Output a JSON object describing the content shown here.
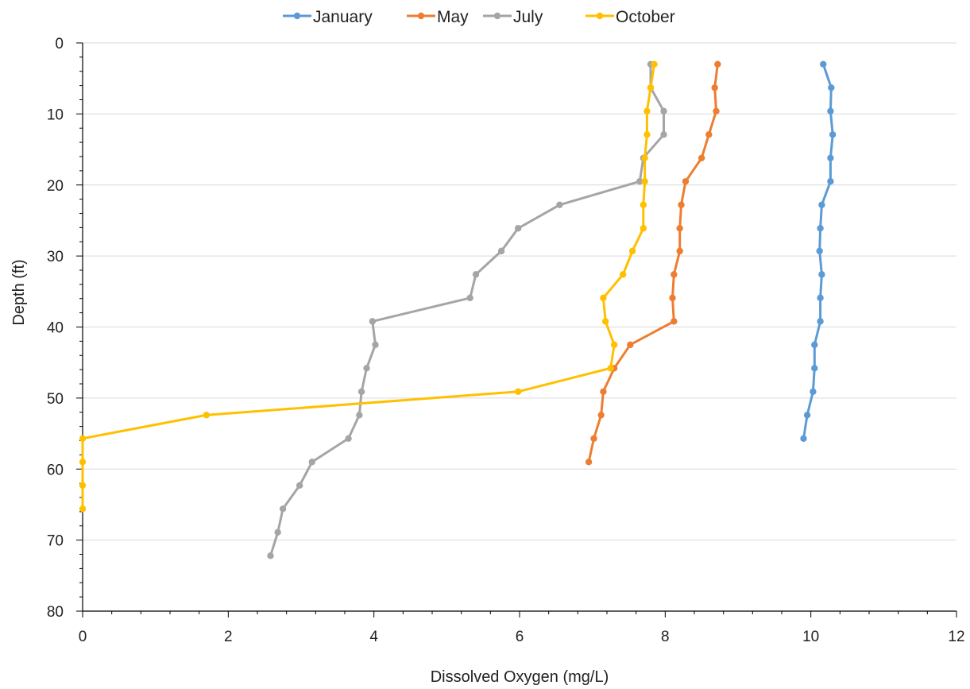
{
  "chart_data": {
    "type": "scatter",
    "xlabel": "Dissolved Oxygen (mg/L)",
    "ylabel": "Depth (ft)",
    "xlim": [
      0,
      12
    ],
    "ylim": [
      0,
      80
    ],
    "y_inverted": true,
    "x_ticks": [
      0,
      2,
      4,
      6,
      8,
      10,
      12
    ],
    "y_ticks": [
      0,
      10,
      20,
      30,
      40,
      50,
      60,
      70,
      80
    ],
    "grid": "horizontal",
    "legend": "top",
    "series": [
      {
        "name": "January",
        "color": "#5B9BD5",
        "points": [
          [
            10.17,
            3
          ],
          [
            10.28,
            6.3
          ],
          [
            10.27,
            9.6
          ],
          [
            10.3,
            12.9
          ],
          [
            10.27,
            16.2
          ],
          [
            10.27,
            19.5
          ],
          [
            10.15,
            22.8
          ],
          [
            10.13,
            26.1
          ],
          [
            10.12,
            29.3
          ],
          [
            10.15,
            32.6
          ],
          [
            10.13,
            35.9
          ],
          [
            10.13,
            39.2
          ],
          [
            10.05,
            42.5
          ],
          [
            10.05,
            45.8
          ],
          [
            10.03,
            49.1
          ],
          [
            9.95,
            52.4
          ],
          [
            9.9,
            55.7
          ]
        ]
      },
      {
        "name": "May",
        "color": "#ED7D31",
        "points": [
          [
            8.72,
            3
          ],
          [
            8.68,
            6.3
          ],
          [
            8.7,
            9.6
          ],
          [
            8.6,
            12.9
          ],
          [
            8.5,
            16.2
          ],
          [
            8.28,
            19.5
          ],
          [
            8.22,
            22.8
          ],
          [
            8.2,
            26.1
          ],
          [
            8.2,
            29.3
          ],
          [
            8.12,
            32.6
          ],
          [
            8.1,
            35.9
          ],
          [
            8.12,
            39.2
          ],
          [
            7.52,
            42.5
          ],
          [
            7.3,
            45.8
          ],
          [
            7.15,
            49.1
          ],
          [
            7.12,
            52.4
          ],
          [
            7.02,
            55.7
          ],
          [
            6.95,
            59
          ]
        ]
      },
      {
        "name": "July",
        "color": "#A5A5A5",
        "points": [
          [
            7.8,
            3
          ],
          [
            7.8,
            6.3
          ],
          [
            7.98,
            9.6
          ],
          [
            7.98,
            12.9
          ],
          [
            7.7,
            16.2
          ],
          [
            7.65,
            19.5
          ],
          [
            6.55,
            22.8
          ],
          [
            5.98,
            26.1
          ],
          [
            5.75,
            29.3
          ],
          [
            5.4,
            32.6
          ],
          [
            5.32,
            35.9
          ],
          [
            3.98,
            39.2
          ],
          [
            4.02,
            42.5
          ],
          [
            3.9,
            45.8
          ],
          [
            3.83,
            49.1
          ],
          [
            3.8,
            52.4
          ],
          [
            3.65,
            55.7
          ],
          [
            3.15,
            59
          ],
          [
            2.98,
            62.3
          ],
          [
            2.75,
            65.6
          ],
          [
            2.68,
            68.9
          ],
          [
            2.58,
            72.2
          ]
        ]
      },
      {
        "name": "October",
        "color": "#FFC000",
        "points": [
          [
            7.85,
            3
          ],
          [
            7.8,
            6.3
          ],
          [
            7.75,
            9.6
          ],
          [
            7.75,
            12.9
          ],
          [
            7.72,
            16.2
          ],
          [
            7.72,
            19.5
          ],
          [
            7.7,
            22.8
          ],
          [
            7.7,
            26.1
          ],
          [
            7.55,
            29.3
          ],
          [
            7.42,
            32.6
          ],
          [
            7.15,
            35.9
          ],
          [
            7.18,
            39.2
          ],
          [
            7.3,
            42.5
          ],
          [
            7.25,
            45.8
          ],
          [
            5.98,
            49.1
          ],
          [
            1.7,
            52.4
          ],
          [
            0,
            55.7
          ],
          [
            0,
            59
          ],
          [
            0,
            62.3
          ],
          [
            0,
            65.6
          ]
        ]
      }
    ]
  }
}
